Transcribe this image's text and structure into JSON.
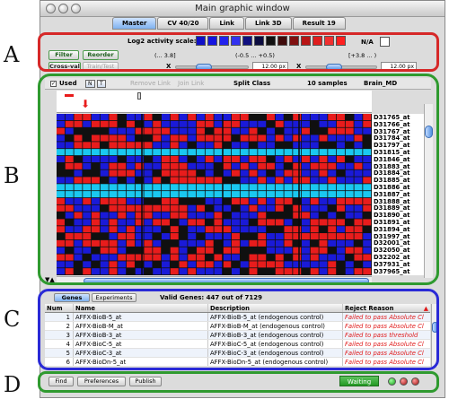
{
  "labels": {
    "a": "A",
    "b": "B",
    "c": "C",
    "d": "D"
  },
  "window": {
    "title": "Main graphic window"
  },
  "tabs": [
    "Master",
    "CV 40/20",
    "Link",
    "Link 3D",
    "Result 19"
  ],
  "controls": {
    "scale_label": "Log2 activity scale:",
    "na_label": "N/A",
    "range_low": "(... 3.8]",
    "range_mid": "(-0.5 ... +0.5)",
    "range_high": "[+3.8 ... )",
    "filter": "Filter",
    "reorder": "Reorder",
    "cross_val": "Cross-val",
    "train_test": "Train/Test",
    "x_label": "X",
    "x_value": "12.00 px",
    "y_label": "X",
    "y_value": "12.00 px"
  },
  "legend_colors": [
    "#1010c8",
    "#1515e0",
    "#2222ee",
    "#3232f0",
    "#101080",
    "#0c0c40",
    "#111111",
    "#400c0c",
    "#801010",
    "#b81414",
    "#e01e1e",
    "#f03030",
    "#ff2020"
  ],
  "heatbar": {
    "used": "Used",
    "n": "N",
    "t": "T",
    "remove_link": "Remove Link",
    "join_link": "Join Link",
    "split_class": "Split Class",
    "samples": "10 samples",
    "dataset": "Brain_MD"
  },
  "probes": [
    "D31765_at",
    "D31766_at",
    "D31767_at",
    "D31784_at",
    "D31797_at",
    "D31815_at",
    "D31846_at",
    "D31883_at",
    "D31884_at",
    "D31885_at",
    "D31886_at",
    "D31887_at",
    "D31888_at",
    "D31889_at",
    "D31890_at",
    "D31891_at",
    "D31894_at",
    "D31997_at",
    "D32001_at",
    "D32050_at",
    "D32202_at",
    "D37931_at",
    "D37965_at"
  ],
  "heatmap_colors": {
    "high": "#e81c1c",
    "low": "#1a1ad8",
    "mid": "#101010",
    "missing": "#1ac8f0"
  },
  "genes": {
    "tab_genes": "Genes",
    "tab_experiments": "Experiments",
    "summary": "Valid Genes: 447 out of 7129",
    "columns": [
      "Num",
      "Name",
      "Description",
      "Reject Reason"
    ],
    "rows": [
      {
        "num": "1",
        "name": "AFFX-BioB-5_at",
        "desc": "AFFX-BioB-5_at (endogenous control)",
        "reason": "Failed to pass Absolute Cl"
      },
      {
        "num": "2",
        "name": "AFFX-BioB-M_at",
        "desc": "AFFX-BioB-M_at (endogenous control)",
        "reason": "Failed to pass Absolute Cl"
      },
      {
        "num": "3",
        "name": "AFFX-BioB-3_at",
        "desc": "AFFX-BioB-3_at (endogenous control)",
        "reason": "Failed to pass threshold"
      },
      {
        "num": "4",
        "name": "AFFX-BioC-5_at",
        "desc": "AFFX-BioC-5_at (endogenous control)",
        "reason": "Failed to pass Absolute Cl"
      },
      {
        "num": "5",
        "name": "AFFX-BioC-3_at",
        "desc": "AFFX-BioC-3_at (endogenous control)",
        "reason": "Failed to pass Absolute Cl"
      },
      {
        "num": "6",
        "name": "AFFX-BioDn-5_at",
        "desc": "AFFX-BioDn-5_at (endogenous control)",
        "reason": "Failed to pass Absolute Cl"
      }
    ]
  },
  "footer": {
    "find": "Find",
    "preferences": "Preferences",
    "publish": "Publish",
    "status": "Waiting"
  }
}
